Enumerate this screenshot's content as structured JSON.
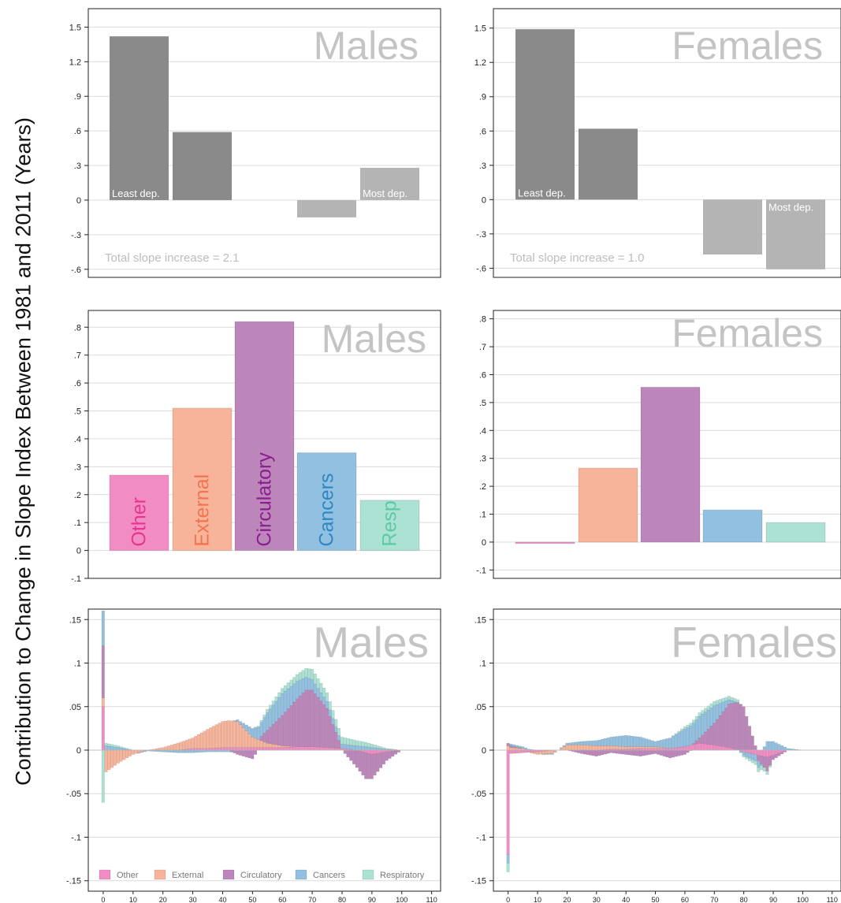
{
  "y_axis_title": "Contribution to Change in Slope Index Between 1981 and 2011 (Years)",
  "panel_titles": {
    "males": "Males",
    "females": "Females"
  },
  "chart_data": [
    {
      "type": "bar",
      "panel": "males",
      "title": "Males",
      "categories": [
        "1",
        "2",
        "3",
        "4",
        "5"
      ],
      "values": [
        1.42,
        0.59,
        0.0,
        -0.15,
        0.28
      ],
      "bar_labels": [
        "Least dep.",
        "",
        "",
        "",
        "Most dep."
      ],
      "annotation": "Total slope increase = 2.1",
      "ylim": [
        -0.67,
        1.66
      ],
      "yticks": [
        1.5,
        1.2,
        0.9,
        0.6,
        0.3,
        0,
        -0.3,
        -0.6
      ],
      "ytick_labels": [
        "1.5",
        "1.2",
        ".9",
        ".6",
        ".3",
        "0",
        "-.3",
        "-.6"
      ],
      "grid": true
    },
    {
      "type": "bar",
      "panel": "females",
      "title": "Females",
      "categories": [
        "1",
        "2",
        "3",
        "4",
        "5"
      ],
      "values": [
        1.49,
        0.62,
        0.0,
        -0.48,
        -0.61
      ],
      "bar_labels": [
        "Least dep.",
        "",
        "",
        "",
        "Most dep."
      ],
      "annotation": "Total slope increase = 1.0",
      "ylim": [
        -0.68,
        1.67
      ],
      "yticks": [
        1.5,
        1.2,
        0.9,
        0.6,
        0.3,
        0,
        -0.3,
        -0.6
      ],
      "ytick_labels": [
        "1.5",
        "1.2",
        ".9",
        ".6",
        ".3",
        "0",
        "-.3",
        "-.6"
      ],
      "grid": true
    },
    {
      "type": "bar",
      "panel": "males",
      "title": "Males",
      "categories": [
        "Other",
        "External",
        "Circulatory",
        "Cancers",
        "Resp"
      ],
      "values": [
        0.27,
        0.51,
        0.82,
        0.35,
        0.18
      ],
      "bar_labels": [
        "Other",
        "External",
        "Circulatory",
        "Cancers",
        "Resp"
      ],
      "ylim": [
        -0.1,
        0.86
      ],
      "yticks": [
        0.8,
        0.7,
        0.6,
        0.5,
        0.4,
        0.3,
        0.2,
        0.1,
        0,
        -0.1
      ],
      "ytick_labels": [
        ".8",
        ".7",
        ".6",
        ".5",
        ".4",
        ".3",
        ".2",
        ".1",
        "0",
        "-.1"
      ],
      "grid": true
    },
    {
      "type": "bar",
      "panel": "females",
      "title": "Females",
      "categories": [
        "Other",
        "External",
        "Circulatory",
        "Cancers",
        "Respiratory"
      ],
      "values": [
        -0.005,
        0.265,
        0.555,
        0.115,
        0.07
      ],
      "ylim": [
        -0.13,
        0.83
      ],
      "yticks": [
        0.8,
        0.7,
        0.6,
        0.5,
        0.4,
        0.3,
        0.2,
        0.1,
        0,
        -0.1
      ],
      "ytick_labels": [
        ".8",
        ".7",
        ".6",
        ".5",
        ".4",
        ".3",
        ".2",
        ".1",
        "0",
        "-.1"
      ],
      "grid": true
    },
    {
      "type": "area",
      "panel": "males",
      "title": "Males",
      "stacked": true,
      "x": [
        0,
        1,
        5,
        10,
        15,
        20,
        25,
        30,
        35,
        40,
        42,
        45,
        50,
        55,
        60,
        65,
        68,
        70,
        75,
        80,
        85,
        88,
        90,
        95,
        100
      ],
      "series": [
        {
          "name": "Other",
          "values": [
            0.05,
            0.0,
            0.0,
            0.0,
            0.0,
            0.0,
            0.0,
            0.002,
            0.002,
            0.003,
            0.003,
            0.003,
            0.003,
            0.003,
            0.003,
            0.004,
            0.004,
            0.004,
            0.003,
            0.002,
            0.0,
            -0.003,
            -0.005,
            -0.002,
            0.0
          ]
        },
        {
          "name": "External",
          "values": [
            0.01,
            -0.025,
            -0.015,
            -0.005,
            0.0,
            0.003,
            0.008,
            0.012,
            0.022,
            0.03,
            0.031,
            0.03,
            0.012,
            0.005,
            0.002,
            0.0,
            0.0,
            0.0,
            0.0,
            0.0,
            0.0,
            0.0,
            0.0,
            0.0,
            0.0
          ]
        },
        {
          "name": "Circulatory",
          "values": [
            0.06,
            0.0,
            0.0,
            0.0,
            0.0,
            0.0,
            0.0,
            0.0,
            0.0,
            0.0,
            0.0,
            -0.005,
            -0.01,
            0.015,
            0.035,
            0.055,
            0.065,
            0.065,
            0.045,
            0.0,
            -0.02,
            -0.03,
            -0.028,
            -0.01,
            0.0
          ]
        },
        {
          "name": "Cancers",
          "values": [
            0.04,
            0.005,
            0.003,
            0.0,
            -0.001,
            -0.002,
            -0.003,
            -0.003,
            -0.002,
            -0.002,
            -0.002,
            0.002,
            0.01,
            0.02,
            0.025,
            0.02,
            0.015,
            0.012,
            0.008,
            0.005,
            0.005,
            0.004,
            0.003,
            0.001,
            0.0
          ]
        },
        {
          "name": "Respiratory",
          "values": [
            -0.06,
            0.003,
            0.002,
            0.0,
            0.0,
            0.0,
            0.0,
            0.0,
            0.0,
            0.0,
            0.0,
            0.0,
            0.0,
            0.004,
            0.006,
            0.008,
            0.01,
            0.012,
            0.01,
            0.008,
            0.006,
            0.005,
            0.004,
            0.001,
            0.0
          ]
        }
      ],
      "legend": [
        "Other",
        "External",
        "Circulatory",
        "Cancers",
        "Respiratory"
      ],
      "legend_position": "bottom",
      "xlim": [
        -5,
        113
      ],
      "ylim": [
        -0.162,
        0.162
      ],
      "xticks": [
        0,
        10,
        20,
        30,
        40,
        50,
        60,
        70,
        80,
        90,
        100,
        110
      ],
      "yticks": [
        0.15,
        0.1,
        0.05,
        0,
        -0.05,
        -0.1,
        -0.15
      ],
      "ytick_labels": [
        ".15",
        ".1",
        ".05",
        "0",
        "-.05",
        "-.1",
        "-.15"
      ],
      "grid": true
    },
    {
      "type": "area",
      "panel": "females",
      "title": "Females",
      "stacked": true,
      "x": [
        0,
        1,
        5,
        10,
        15,
        20,
        25,
        30,
        35,
        40,
        45,
        50,
        55,
        60,
        65,
        70,
        75,
        78,
        80,
        85,
        88,
        90,
        95,
        100
      ],
      "series": [
        {
          "name": "Other",
          "values": [
            -0.12,
            -0.004,
            -0.003,
            -0.002,
            0.0,
            0.0,
            0.0,
            0.0,
            0.001,
            0.001,
            0.002,
            0.002,
            0.002,
            0.004,
            0.008,
            0.006,
            0.003,
            0.0,
            -0.002,
            -0.006,
            -0.008,
            -0.006,
            0.0,
            0.0
          ]
        },
        {
          "name": "External",
          "values": [
            0.005,
            0.003,
            0.002,
            -0.003,
            -0.004,
            0.006,
            0.006,
            0.005,
            0.004,
            0.003,
            0.002,
            0.002,
            0.0,
            0.0,
            0.0,
            0.0,
            0.0,
            0.0,
            0.0,
            0.0,
            0.0,
            0.0,
            0.0,
            0.0
          ]
        },
        {
          "name": "Circulatory",
          "values": [
            0.003,
            0.002,
            0.0,
            0.0,
            0.0,
            0.0,
            -0.004,
            -0.007,
            -0.003,
            -0.005,
            -0.007,
            -0.004,
            -0.009,
            -0.005,
            0.006,
            0.025,
            0.05,
            0.055,
            0.05,
            -0.006,
            -0.016,
            -0.005,
            0.0,
            0.0
          ]
        },
        {
          "name": "Cancers",
          "values": [
            -0.01,
            0.002,
            0.002,
            0.0,
            -0.001,
            0.002,
            0.004,
            0.006,
            0.01,
            0.013,
            0.011,
            0.006,
            0.012,
            0.02,
            0.025,
            0.02,
            0.005,
            0.0,
            -0.004,
            -0.008,
            0.01,
            0.01,
            0.002,
            0.0
          ]
        },
        {
          "name": "Respiratory",
          "values": [
            -0.01,
            0.0,
            0.0,
            0.0,
            0.0,
            0.0,
            0.0,
            0.0,
            0.0,
            0.0,
            0.0,
            0.0,
            0.0,
            0.003,
            0.004,
            0.005,
            0.004,
            0.003,
            -0.002,
            -0.005,
            -0.004,
            0.0,
            0.0,
            0.0
          ]
        }
      ],
      "xlim": [
        -5,
        113
      ],
      "ylim": [
        -0.162,
        0.162
      ],
      "xticks": [
        0,
        10,
        20,
        30,
        40,
        50,
        60,
        70,
        80,
        90,
        100,
        110
      ],
      "yticks": [
        0.15,
        0.1,
        0.05,
        0,
        -0.05,
        -0.1,
        -0.15
      ],
      "ytick_labels": [
        ".15",
        ".1",
        ".05",
        "0",
        "-.05",
        "-.1",
        "-.15"
      ],
      "grid": true
    }
  ],
  "colors": {
    "depr_dark": "#8a8a8a",
    "depr_mid": "#9d9d9d",
    "depr_light": "#b4b4b4",
    "other": "#f18dc4",
    "external": "#f8b49b",
    "circulatory": "#bd86bb",
    "cancers": "#92c0e0",
    "respiratory": "#ace2d4",
    "other_text": "#e8348f",
    "external_text": "#f1744f",
    "circulatory_text": "#8a1e8f",
    "cancers_text": "#2f86c2",
    "respiratory_text": "#5fc8a6",
    "panel_title": "#c4c4c4",
    "grid": "#dcdcdc"
  }
}
